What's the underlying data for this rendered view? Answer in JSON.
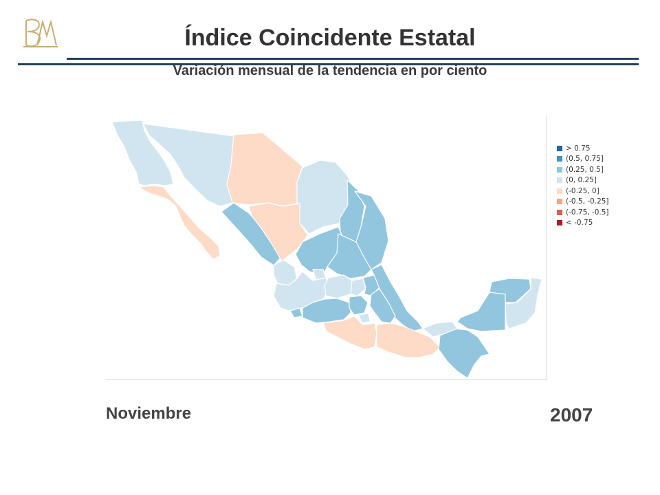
{
  "header": {
    "title": "Índice Coincidente Estatal",
    "subtitle": "Variación mensual de la tendencia en por ciento",
    "logo_icon": "banxico-monogram-icon"
  },
  "legend": [
    {
      "label": "> 0.75",
      "color": "#2166ac"
    },
    {
      "label": "(0.5, 0.75]",
      "color": "#4393c3"
    },
    {
      "label": "(0.25, 0.5]",
      "color": "#92c5de"
    },
    {
      "label": "(0, 0.25]",
      "color": "#d1e5f0"
    },
    {
      "label": "(-0.25, 0]",
      "color": "#fddbc7"
    },
    {
      "label": "(-0.5, -0.25]",
      "color": "#f4a582"
    },
    {
      "label": "(-0.75, -0.5]",
      "color": "#d6604d"
    },
    {
      "label": "< -0.75",
      "color": "#b2182b"
    }
  ],
  "footer": {
    "month": "Noviembre",
    "year": "2007"
  }
}
